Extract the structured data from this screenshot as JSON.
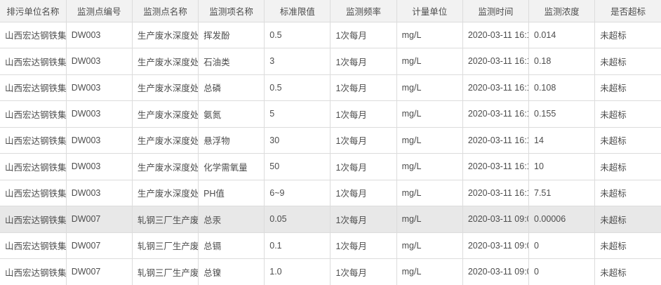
{
  "colors": {
    "header_bg": "#f2f2f2",
    "row_highlight_bg": "#e8e8e8",
    "border": "#dcdcdc",
    "header_text": "#4c4c4c",
    "body_text": "#4d4d4d"
  },
  "table": {
    "highlighted_row_index": 7,
    "columns": [
      {
        "label": "排污单位名称"
      },
      {
        "label": "监测点编号"
      },
      {
        "label": "监测点名称"
      },
      {
        "label": "监测项名称"
      },
      {
        "label": "标准限值"
      },
      {
        "label": "监测频率"
      },
      {
        "label": "计量单位"
      },
      {
        "label": "监测时间"
      },
      {
        "label": "监测浓度"
      },
      {
        "label": "是否超标"
      }
    ],
    "rows": [
      {
        "cells": [
          "山西宏达钢铁集团",
          "DW003",
          "生产废水深度处理",
          "挥发酚",
          "0.5",
          "1次每月",
          "mg/L",
          "2020-03-11 16:1",
          "0.014",
          "未超标"
        ]
      },
      {
        "cells": [
          "山西宏达钢铁集团",
          "DW003",
          "生产废水深度处理",
          "石油类",
          "3",
          "1次每月",
          "mg/L",
          "2020-03-11 16:1",
          "0.18",
          "未超标"
        ]
      },
      {
        "cells": [
          "山西宏达钢铁集团",
          "DW003",
          "生产废水深度处理",
          "总磷",
          "0.5",
          "1次每月",
          "mg/L",
          "2020-03-11 16:1",
          "0.108",
          "未超标"
        ]
      },
      {
        "cells": [
          "山西宏达钢铁集团",
          "DW003",
          "生产废水深度处理",
          "氨氮",
          "5",
          "1次每月",
          "mg/L",
          "2020-03-11 16:1",
          "0.155",
          "未超标"
        ]
      },
      {
        "cells": [
          "山西宏达钢铁集团",
          "DW003",
          "生产废水深度处理",
          "悬浮物",
          "30",
          "1次每月",
          "mg/L",
          "2020-03-11 16:1",
          "14",
          "未超标"
        ]
      },
      {
        "cells": [
          "山西宏达钢铁集团",
          "DW003",
          "生产废水深度处理",
          "化学需氧量",
          "50",
          "1次每月",
          "mg/L",
          "2020-03-11 16:1",
          "10",
          "未超标"
        ]
      },
      {
        "cells": [
          "山西宏达钢铁集团",
          "DW003",
          "生产废水深度处理",
          "PH值",
          "6~9",
          "1次每月",
          "mg/L",
          "2020-03-11 16:1",
          "7.51",
          "未超标"
        ]
      },
      {
        "cells": [
          "山西宏达钢铁集团",
          "DW007",
          "轧钢三厂生产废水",
          "总汞",
          "0.05",
          "1次每月",
          "mg/L",
          "2020-03-11 09:0",
          "0.00006",
          "未超标"
        ]
      },
      {
        "cells": [
          "山西宏达钢铁集团",
          "DW007",
          "轧钢三厂生产废水",
          "总镉",
          "0.1",
          "1次每月",
          "mg/L",
          "2020-03-11 09:0",
          "0",
          "未超标"
        ]
      },
      {
        "cells": [
          "山西宏达钢铁集团",
          "DW007",
          "轧钢三厂生产废水",
          "总镍",
          "1.0",
          "1次每月",
          "mg/L",
          "2020-03-11 09:0",
          "0",
          "未超标"
        ]
      }
    ]
  }
}
